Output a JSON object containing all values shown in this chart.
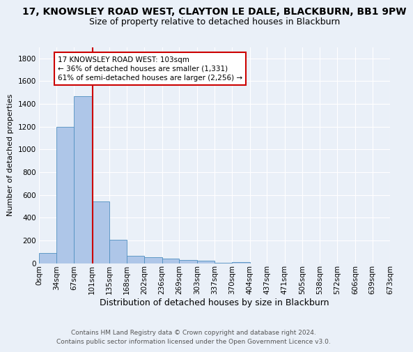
{
  "title1": "17, KNOWSLEY ROAD WEST, CLAYTON LE DALE, BLACKBURN, BB1 9PW",
  "title2": "Size of property relative to detached houses in Blackburn",
  "xlabel": "Distribution of detached houses by size in Blackburn",
  "ylabel": "Number of detached properties",
  "footer1": "Contains HM Land Registry data © Crown copyright and database right 2024.",
  "footer2": "Contains public sector information licensed under the Open Government Licence v3.0.",
  "bin_labels": [
    "0sqm",
    "34sqm",
    "67sqm",
    "101sqm",
    "135sqm",
    "168sqm",
    "202sqm",
    "236sqm",
    "269sqm",
    "303sqm",
    "337sqm",
    "370sqm",
    "404sqm",
    "437sqm",
    "471sqm",
    "505sqm",
    "538sqm",
    "572sqm",
    "606sqm",
    "639sqm",
    "673sqm"
  ],
  "bin_edges": [
    0,
    34,
    67,
    101,
    135,
    168,
    202,
    236,
    269,
    303,
    337,
    370,
    404,
    437,
    471,
    505,
    538,
    572,
    606,
    639,
    673
  ],
  "bar_heights": [
    90,
    1200,
    1470,
    540,
    205,
    65,
    50,
    40,
    25,
    20,
    5,
    10,
    0,
    0,
    0,
    0,
    0,
    0,
    0,
    0
  ],
  "bar_color": "#aec6e8",
  "bar_edgecolor": "#4f8fc0",
  "property_value": 103,
  "vline_color": "#cc0000",
  "annotation_line1": "17 KNOWSLEY ROAD WEST: 103sqm",
  "annotation_line2": "← 36% of detached houses are smaller (1,331)",
  "annotation_line3": "61% of semi-detached houses are larger (2,256) →",
  "annotation_box_edgecolor": "#cc0000",
  "annotation_box_facecolor": "#ffffff",
  "ylim": [
    0,
    1900
  ],
  "yticks": [
    0,
    200,
    400,
    600,
    800,
    1000,
    1200,
    1400,
    1600,
    1800
  ],
  "bg_color": "#eaf0f8",
  "grid_color": "#ffffff",
  "title1_fontsize": 10,
  "title2_fontsize": 9,
  "xlabel_fontsize": 9,
  "ylabel_fontsize": 8,
  "tick_fontsize": 7.5,
  "footer_fontsize": 6.5
}
